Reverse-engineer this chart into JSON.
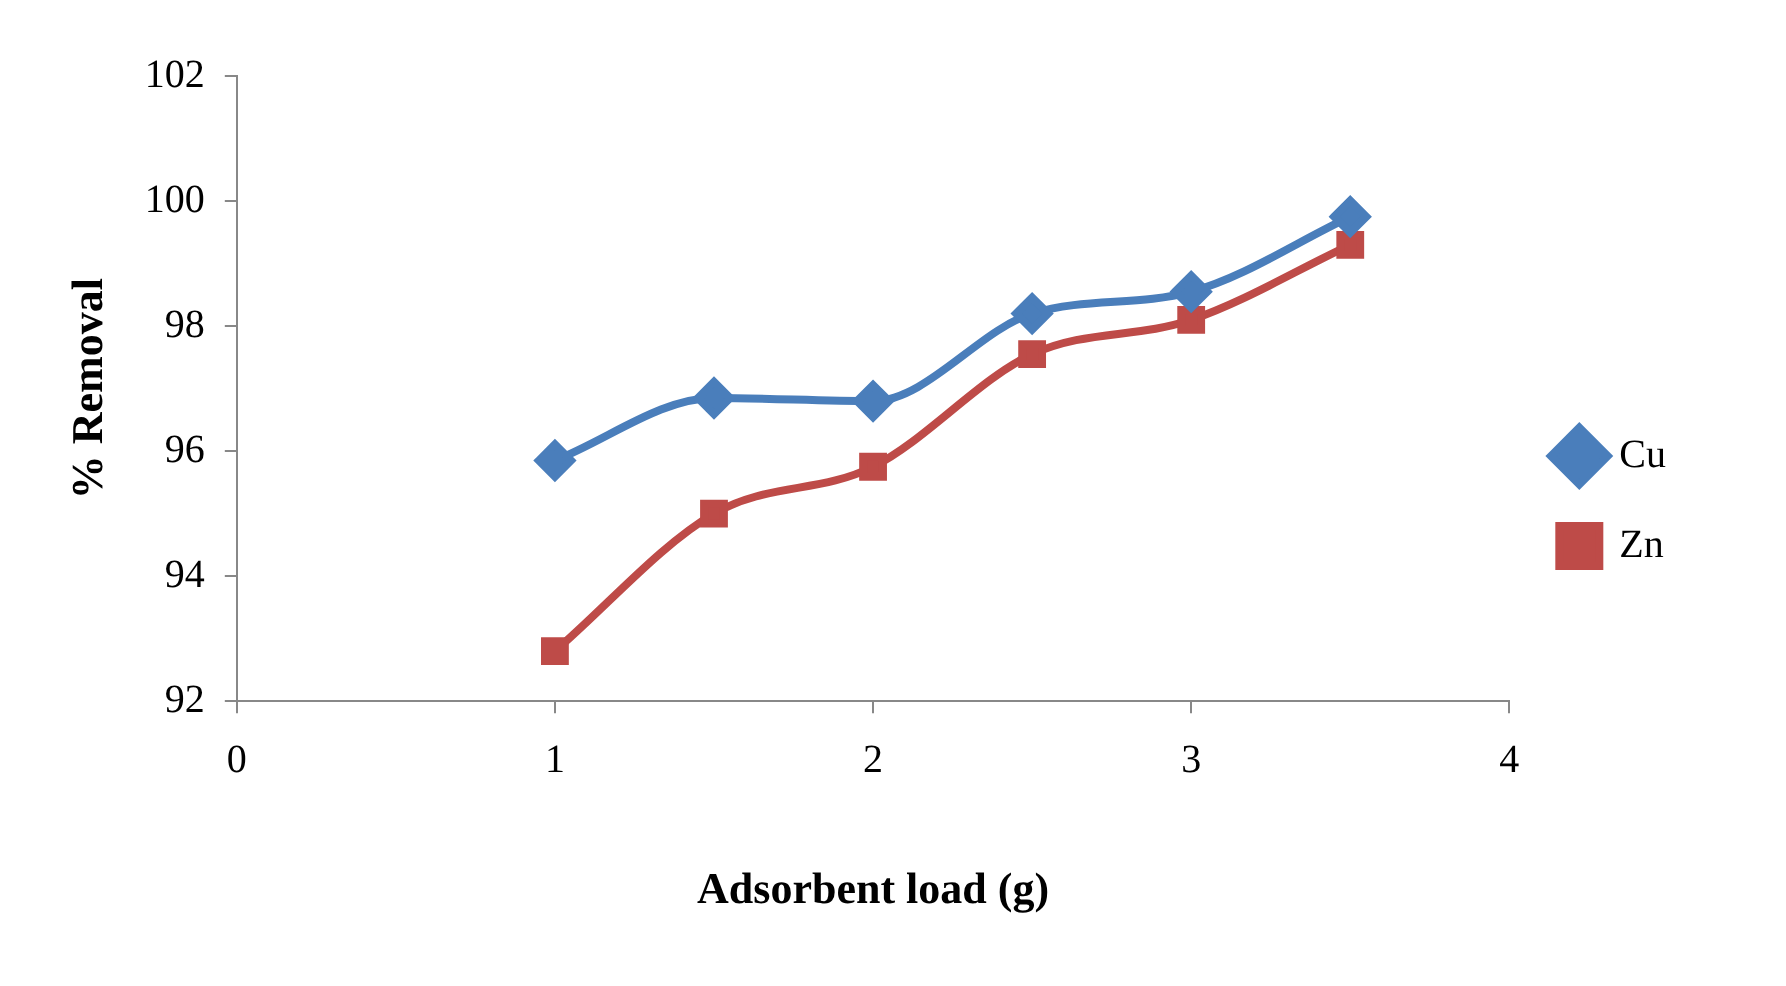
{
  "chart_data": {
    "type": "line",
    "xlabel": "Adsorbent load (g)",
    "ylabel": "% Removal",
    "xlim": [
      0,
      4
    ],
    "xticks": [
      0,
      1,
      2,
      3,
      4
    ],
    "ylim": [
      92,
      102
    ],
    "yticks": [
      92,
      94,
      96,
      98,
      100,
      102
    ],
    "grid": false,
    "legend": "right",
    "line_style": "solid",
    "series": [
      {
        "name": "Cu",
        "color": "#4a7ebb",
        "marker": "diamond",
        "x": [
          1,
          1.5,
          2,
          2.5,
          3,
          3.5
        ],
        "values": [
          95.85,
          96.85,
          96.8,
          98.2,
          98.55,
          99.75
        ]
      },
      {
        "name": "Zn",
        "color": "#be4b48",
        "marker": "square",
        "x": [
          1,
          1.5,
          2,
          2.5,
          3,
          3.5
        ],
        "values": [
          92.8,
          95.0,
          95.75,
          97.55,
          98.1,
          99.3
        ]
      }
    ]
  }
}
